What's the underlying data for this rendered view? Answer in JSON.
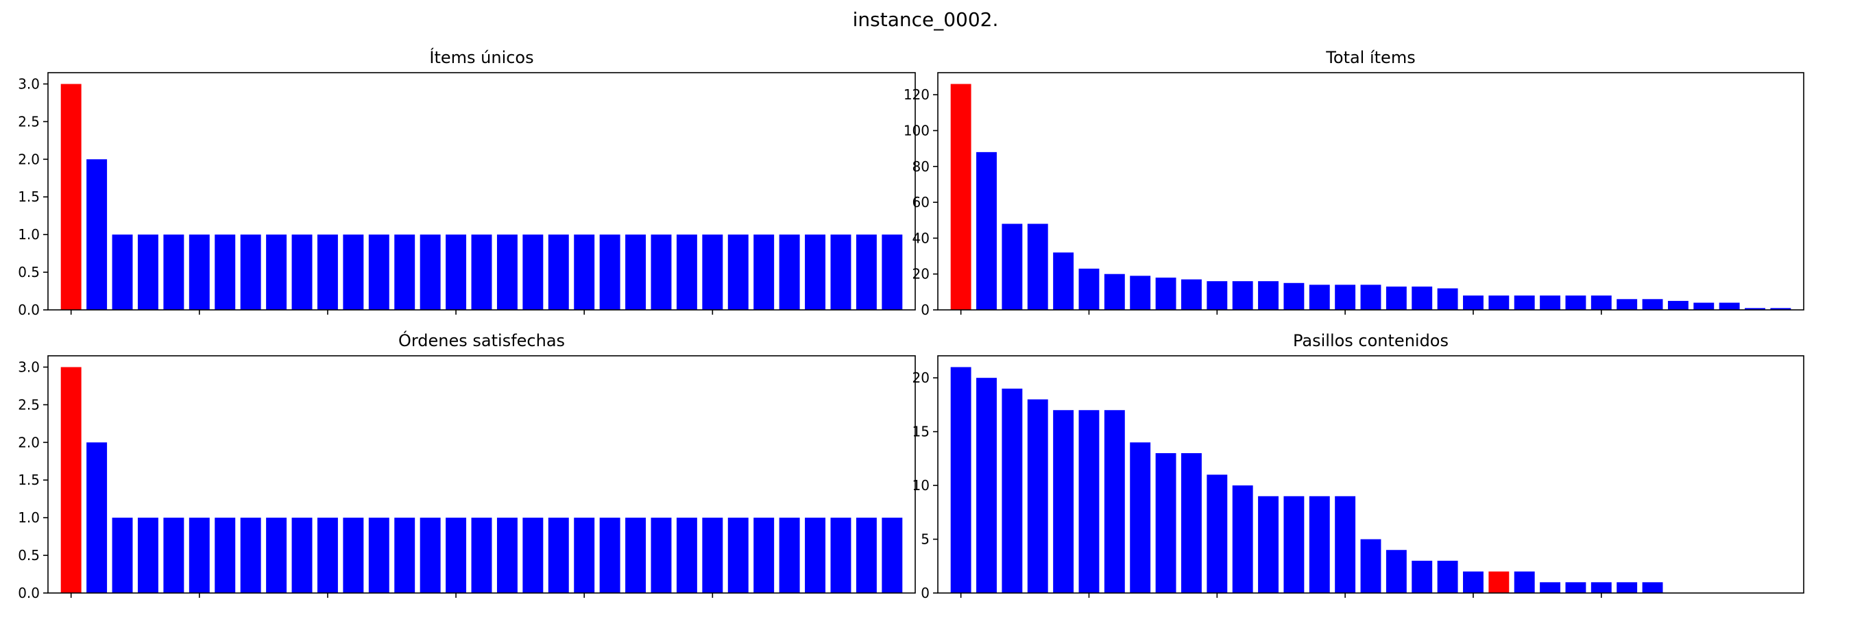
{
  "figure": {
    "title": "instance_0002."
  },
  "chart_data": [
    {
      "type": "bar",
      "title": "Ítems únicos",
      "values": [
        3,
        2,
        1,
        1,
        1,
        1,
        1,
        1,
        1,
        1,
        1,
        1,
        1,
        1,
        1,
        1,
        1,
        1,
        1,
        1,
        1,
        1,
        1,
        1,
        1,
        1,
        1,
        1,
        1,
        1,
        1,
        1,
        1
      ],
      "colors": [
        "#ff0000",
        "#0000ff",
        "#0000ff",
        "#0000ff",
        "#0000ff",
        "#0000ff",
        "#0000ff",
        "#0000ff",
        "#0000ff",
        "#0000ff",
        "#0000ff",
        "#0000ff",
        "#0000ff",
        "#0000ff",
        "#0000ff",
        "#0000ff",
        "#0000ff",
        "#0000ff",
        "#0000ff",
        "#0000ff",
        "#0000ff",
        "#0000ff",
        "#0000ff",
        "#0000ff",
        "#0000ff",
        "#0000ff",
        "#0000ff",
        "#0000ff",
        "#0000ff",
        "#0000ff",
        "#0000ff",
        "#0000ff",
        "#0000ff"
      ],
      "ylim": [
        0,
        3.15
      ],
      "yticks": [
        0,
        0.5,
        1.0,
        1.5,
        2.0,
        2.5,
        3.0
      ],
      "ytick_labels": [
        "0.0",
        "0.5",
        "1.0",
        "1.5",
        "2.0",
        "2.5",
        "3.0"
      ],
      "xlim": [
        -0.9,
        32.9
      ],
      "xticks": [
        0,
        5,
        10,
        15,
        20,
        25
      ],
      "xtick_labels": false
    },
    {
      "type": "bar",
      "title": "Total ítems",
      "values": [
        126,
        88,
        48,
        48,
        32,
        23,
        20,
        19,
        18,
        17,
        16,
        16,
        16,
        15,
        14,
        14,
        14,
        13,
        13,
        12,
        8,
        8,
        8,
        8,
        8,
        8,
        6,
        6,
        5,
        4,
        4,
        1,
        1
      ],
      "colors": [
        "#ff0000",
        "#0000ff",
        "#0000ff",
        "#0000ff",
        "#0000ff",
        "#0000ff",
        "#0000ff",
        "#0000ff",
        "#0000ff",
        "#0000ff",
        "#0000ff",
        "#0000ff",
        "#0000ff",
        "#0000ff",
        "#0000ff",
        "#0000ff",
        "#0000ff",
        "#0000ff",
        "#0000ff",
        "#0000ff",
        "#0000ff",
        "#0000ff",
        "#0000ff",
        "#0000ff",
        "#0000ff",
        "#0000ff",
        "#0000ff",
        "#0000ff",
        "#0000ff",
        "#0000ff",
        "#0000ff",
        "#0000ff",
        "#0000ff"
      ],
      "ylim": [
        0,
        132.3
      ],
      "yticks": [
        0,
        20,
        40,
        60,
        80,
        100,
        120
      ],
      "ytick_labels": [
        "0",
        "20",
        "40",
        "60",
        "80",
        "100",
        "120"
      ],
      "xlim": [
        -0.9,
        32.9
      ],
      "xticks": [
        0,
        5,
        10,
        15,
        20,
        25
      ],
      "xtick_labels": false
    },
    {
      "type": "bar",
      "title": "Órdenes satisfechas",
      "values": [
        3,
        2,
        1,
        1,
        1,
        1,
        1,
        1,
        1,
        1,
        1,
        1,
        1,
        1,
        1,
        1,
        1,
        1,
        1,
        1,
        1,
        1,
        1,
        1,
        1,
        1,
        1,
        1,
        1,
        1,
        1,
        1,
        1
      ],
      "colors": [
        "#ff0000",
        "#0000ff",
        "#0000ff",
        "#0000ff",
        "#0000ff",
        "#0000ff",
        "#0000ff",
        "#0000ff",
        "#0000ff",
        "#0000ff",
        "#0000ff",
        "#0000ff",
        "#0000ff",
        "#0000ff",
        "#0000ff",
        "#0000ff",
        "#0000ff",
        "#0000ff",
        "#0000ff",
        "#0000ff",
        "#0000ff",
        "#0000ff",
        "#0000ff",
        "#0000ff",
        "#0000ff",
        "#0000ff",
        "#0000ff",
        "#0000ff",
        "#0000ff",
        "#0000ff",
        "#0000ff",
        "#0000ff",
        "#0000ff"
      ],
      "ylim": [
        0,
        3.15
      ],
      "yticks": [
        0,
        0.5,
        1.0,
        1.5,
        2.0,
        2.5,
        3.0
      ],
      "ytick_labels": [
        "0.0",
        "0.5",
        "1.0",
        "1.5",
        "2.0",
        "2.5",
        "3.0"
      ],
      "xlim": [
        -0.9,
        32.9
      ],
      "xticks": [
        0,
        5,
        10,
        15,
        20,
        25
      ],
      "xtick_labels": false
    },
    {
      "type": "bar",
      "title": "Pasillos contenidos",
      "values": [
        21,
        20,
        19,
        18,
        17,
        17,
        17,
        14,
        13,
        13,
        11,
        10,
        9,
        9,
        9,
        9,
        5,
        4,
        3,
        3,
        2,
        2,
        2,
        1,
        1,
        1,
        1,
        1,
        0,
        0,
        0,
        0,
        0
      ],
      "colors": [
        "#0000ff",
        "#0000ff",
        "#0000ff",
        "#0000ff",
        "#0000ff",
        "#0000ff",
        "#0000ff",
        "#0000ff",
        "#0000ff",
        "#0000ff",
        "#0000ff",
        "#0000ff",
        "#0000ff",
        "#0000ff",
        "#0000ff",
        "#0000ff",
        "#0000ff",
        "#0000ff",
        "#0000ff",
        "#0000ff",
        "#0000ff",
        "#ff0000",
        "#0000ff",
        "#0000ff",
        "#0000ff",
        "#0000ff",
        "#0000ff",
        "#0000ff",
        "#0000ff",
        "#0000ff",
        "#0000ff",
        "#0000ff",
        "#0000ff"
      ],
      "ylim": [
        0,
        22.05
      ],
      "yticks": [
        0,
        5,
        10,
        15,
        20
      ],
      "ytick_labels": [
        "0",
        "5",
        "10",
        "15",
        "20"
      ],
      "xlim": [
        -0.9,
        32.9
      ],
      "xticks": [
        0,
        5,
        10,
        15,
        20,
        25
      ],
      "xtick_labels": false
    }
  ]
}
